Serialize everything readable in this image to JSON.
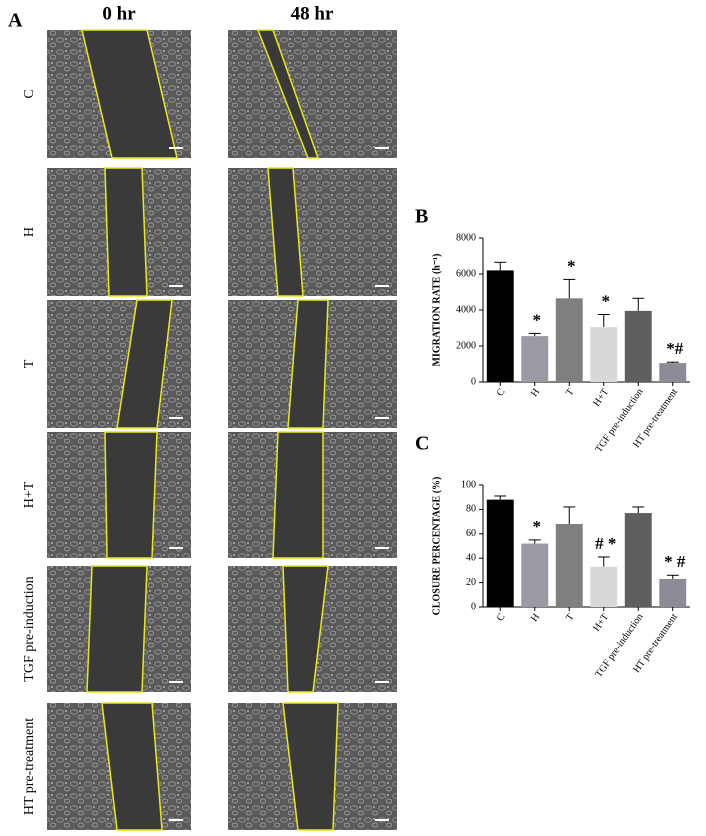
{
  "figure": {
    "panel": "A",
    "columns": [
      "0 hr",
      "48 hr"
    ],
    "rows": [
      "C",
      "H",
      "T",
      "H+T",
      "TGF pre-induction",
      "HT pre-treatment"
    ]
  },
  "chart_data": [
    {
      "type": "bar",
      "panel": "B",
      "y_label": "MIGRATION RATE  (h⁻¹)",
      "categories": [
        "C",
        "H",
        "T",
        "H+T",
        "TGF pre-induction",
        "HT pre-treatment"
      ],
      "values": [
        6200,
        2550,
        4650,
        3050,
        3950,
        1050
      ],
      "errors": [
        450,
        150,
        1050,
        700,
        700,
        50
      ],
      "significance": [
        null,
        "*",
        "*",
        "*",
        null,
        "*#"
      ],
      "colors": [
        "#000000",
        "#9a9aa2",
        "#7f7f7f",
        "#d8d8d8",
        "#5f5f5f",
        "#8c8c96"
      ],
      "ylim": [
        0,
        8000
      ],
      "yticks": [
        0,
        2000,
        4000,
        6000,
        8000
      ]
    },
    {
      "type": "bar",
      "panel": "C",
      "y_label": "CLOSURE PERCENTAGE  (%)",
      "categories": [
        "C",
        "H",
        "T",
        "H+T",
        "TGF pre-induction",
        "HT pre-treatment"
      ],
      "values": [
        88,
        52,
        68,
        33,
        77,
        23
      ],
      "errors": [
        3,
        3,
        14,
        8,
        5,
        3
      ],
      "significance": [
        null,
        "*",
        null,
        "# *",
        null,
        "* #"
      ],
      "colors": [
        "#000000",
        "#9a9aa2",
        "#7f7f7f",
        "#d8d8d8",
        "#5f5f5f",
        "#8c8c96"
      ],
      "ylim": [
        0,
        100
      ],
      "yticks": [
        0,
        20,
        40,
        60,
        80,
        100
      ]
    }
  ]
}
